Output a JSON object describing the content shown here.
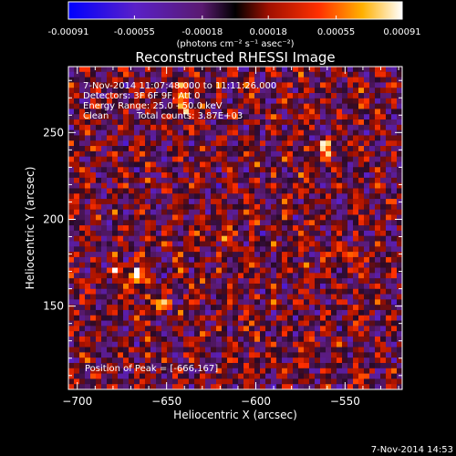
{
  "chart_data": {
    "type": "heatmap",
    "title": "Reconstructed RHESSI Image",
    "xlabel": "Heliocentric X (arcsec)",
    "ylabel": "Heliocentric Y (arcsec)",
    "xlim": [
      -705,
      -518
    ],
    "ylim": [
      102,
      288
    ],
    "x_ticks": [
      -700,
      -650,
      -600,
      -550
    ],
    "y_ticks": [
      150,
      200,
      250
    ],
    "colorbar": {
      "min": -0.00091,
      "max": 0.00091,
      "tick_values": [
        -0.00091,
        -0.00055,
        -0.00018,
        0.00018,
        0.00055,
        0.00091
      ],
      "tick_labels": [
        "-0.00091",
        "-0.00055",
        "-0.00018",
        "0.00018",
        "0.00055",
        "0.00091"
      ],
      "unit_label": "(photons cm⁻² s⁻¹ asec⁻²)"
    },
    "annotations": [
      "7-Nov-2014 11:07:48.000 to 11:11:26.000",
      "Detectors: 3F 6F 9F, Att 0",
      "Energy Range: 25.0 - 50.0 keV",
      "Clean",
      "Total counts: 3.87E+03",
      "Position of Peak = [-666,167]"
    ],
    "peak": {
      "x": -666,
      "y": 167
    },
    "bright_spots": [
      {
        "x": -666,
        "y": 167,
        "v": 0.00091
      },
      {
        "x": -676,
        "y": 170,
        "v": 0.0007
      },
      {
        "x": -655,
        "y": 150,
        "v": 0.0007
      },
      {
        "x": -640,
        "y": 265,
        "v": 0.0007
      },
      {
        "x": -562,
        "y": 240,
        "v": 0.0007
      },
      {
        "x": -640,
        "y": 275,
        "v": 0.00065
      },
      {
        "x": -620,
        "y": 190,
        "v": 0.0006
      },
      {
        "x": -550,
        "y": 180,
        "v": 0.0006
      }
    ]
  },
  "footer": {
    "timestamp": "7-Nov-2014 14:53"
  }
}
